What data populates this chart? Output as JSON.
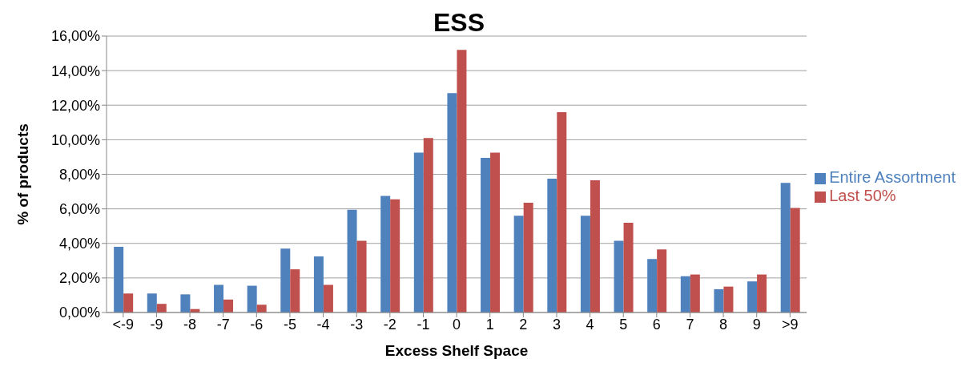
{
  "chart_data": {
    "type": "bar",
    "title": "ESS",
    "xlabel": "Excess Shelf Space",
    "ylabel": "% of products",
    "categories": [
      "<-9",
      "-9",
      "-8",
      "-7",
      "-6",
      "-5",
      "-4",
      "-3",
      "-2",
      "-1",
      "0",
      "1",
      "2",
      "3",
      "4",
      "5",
      "6",
      "7",
      "8",
      "9",
      ">9"
    ],
    "series": [
      {
        "name": "Entire Assortment",
        "color": "#4f81bd",
        "values": [
          3.8,
          1.1,
          1.05,
          1.6,
          1.55,
          3.7,
          3.25,
          5.95,
          6.75,
          9.25,
          12.7,
          8.95,
          5.6,
          7.75,
          5.6,
          4.15,
          3.1,
          2.1,
          1.35,
          1.8,
          7.5
        ]
      },
      {
        "name": "Last 50%",
        "color": "#c0504d",
        "values": [
          1.1,
          0.5,
          0.2,
          0.75,
          0.45,
          2.5,
          1.6,
          4.15,
          6.55,
          10.1,
          15.2,
          9.25,
          6.35,
          11.6,
          7.65,
          5.2,
          3.65,
          2.2,
          1.5,
          2.2,
          6.05
        ]
      }
    ],
    "ylim": [
      0,
      16
    ],
    "yticks": [
      {
        "value": 0,
        "label": "0,00%"
      },
      {
        "value": 2,
        "label": "2,00%"
      },
      {
        "value": 4,
        "label": "4,00%"
      },
      {
        "value": 6,
        "label": "6,00%"
      },
      {
        "value": 8,
        "label": "8,00%"
      },
      {
        "value": 10,
        "label": "10,00%"
      },
      {
        "value": 12,
        "label": "12,00%"
      },
      {
        "value": 14,
        "label": "14,00%"
      },
      {
        "value": 16,
        "label": "16,00%"
      }
    ],
    "grid": "y",
    "legend": "right"
  }
}
